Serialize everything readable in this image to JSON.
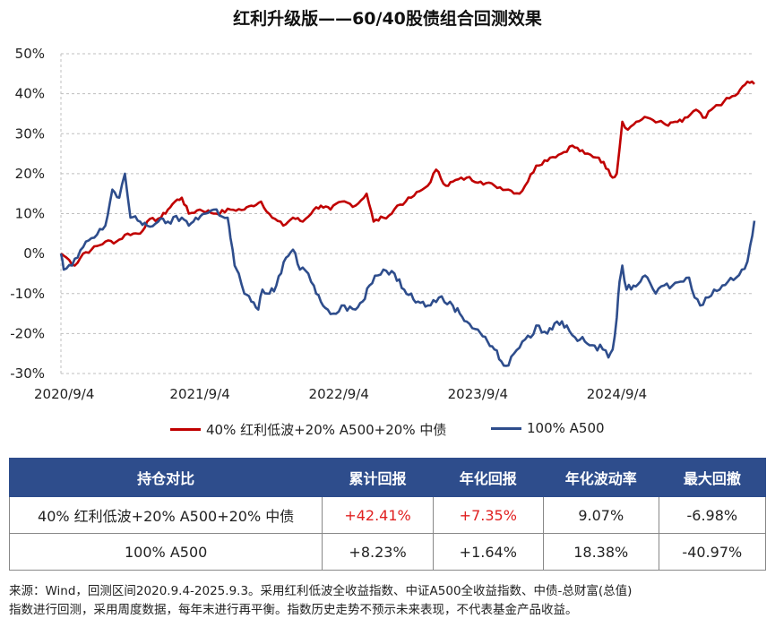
{
  "chart_data": {
    "type": "line",
    "title": "红利升级版——60/40股债组合回测效果",
    "x_ticks": [
      "2020/9/4",
      "2021/9/4",
      "2022/9/4",
      "2023/9/4",
      "2024/9/4"
    ],
    "y_ticks": [
      "50%",
      "40%",
      "30%",
      "20%",
      "10%",
      "0%",
      "-10%",
      "-20%",
      "-30%"
    ],
    "ylim": [
      -30,
      50
    ],
    "x_range": [
      2020.68,
      2025.67
    ],
    "series": [
      {
        "name": "40% 红利低波+20% A500+20% 中债",
        "color": "#c00000",
        "points": [
          [
            2020.68,
            0
          ],
          [
            2020.72,
            -1
          ],
          [
            2020.78,
            -3
          ],
          [
            2020.84,
            0
          ],
          [
            2020.9,
            1
          ],
          [
            2021.0,
            3
          ],
          [
            2021.08,
            3
          ],
          [
            2021.16,
            5
          ],
          [
            2021.2,
            5
          ],
          [
            2021.25,
            5
          ],
          [
            2021.3,
            8
          ],
          [
            2021.4,
            9
          ],
          [
            2021.45,
            11
          ],
          [
            2021.5,
            13
          ],
          [
            2021.55,
            14
          ],
          [
            2021.6,
            10
          ],
          [
            2021.68,
            11
          ],
          [
            2021.8,
            10
          ],
          [
            2021.9,
            11
          ],
          [
            2022.0,
            11
          ],
          [
            2022.05,
            12
          ],
          [
            2022.12,
            13
          ],
          [
            2022.2,
            9
          ],
          [
            2022.28,
            7
          ],
          [
            2022.35,
            9
          ],
          [
            2022.42,
            8
          ],
          [
            2022.5,
            11
          ],
          [
            2022.55,
            12
          ],
          [
            2022.62,
            11
          ],
          [
            2022.7,
            13
          ],
          [
            2022.8,
            12
          ],
          [
            2022.88,
            15
          ],
          [
            2022.93,
            8
          ],
          [
            2023.0,
            9
          ],
          [
            2023.06,
            10
          ],
          [
            2023.1,
            12
          ],
          [
            2023.16,
            13
          ],
          [
            2023.2,
            14
          ],
          [
            2023.28,
            16
          ],
          [
            2023.32,
            17
          ],
          [
            2023.38,
            21
          ],
          [
            2023.45,
            17
          ],
          [
            2023.5,
            18
          ],
          [
            2023.6,
            19
          ],
          [
            2023.7,
            18
          ],
          [
            2023.8,
            17
          ],
          [
            2023.9,
            16
          ],
          [
            2023.98,
            15
          ],
          [
            2024.02,
            17
          ],
          [
            2024.1,
            22
          ],
          [
            2024.2,
            24
          ],
          [
            2024.28,
            25
          ],
          [
            2024.36,
            27
          ],
          [
            2024.45,
            25
          ],
          [
            2024.55,
            24
          ],
          [
            2024.62,
            21
          ],
          [
            2024.65,
            19
          ],
          [
            2024.68,
            20
          ],
          [
            2024.72,
            33
          ],
          [
            2024.76,
            31
          ],
          [
            2024.82,
            33
          ],
          [
            2024.9,
            34
          ],
          [
            2024.98,
            33
          ],
          [
            2025.05,
            32
          ],
          [
            2025.1,
            33
          ],
          [
            2025.15,
            33
          ],
          [
            2025.25,
            36
          ],
          [
            2025.3,
            34
          ],
          [
            2025.32,
            34
          ],
          [
            2025.36,
            36
          ],
          [
            2025.45,
            38
          ],
          [
            2025.55,
            40
          ],
          [
            2025.62,
            43
          ],
          [
            2025.67,
            42.4
          ]
        ]
      },
      {
        "name": "100% A500",
        "color": "#2e4d8c",
        "points": [
          [
            2020.68,
            0
          ],
          [
            2020.7,
            -4
          ],
          [
            2020.76,
            -3
          ],
          [
            2020.8,
            -1
          ],
          [
            2020.86,
            3
          ],
          [
            2020.92,
            4
          ],
          [
            2021.0,
            7
          ],
          [
            2021.05,
            16
          ],
          [
            2021.1,
            14
          ],
          [
            2021.14,
            20
          ],
          [
            2021.18,
            9
          ],
          [
            2021.25,
            8
          ],
          [
            2021.3,
            7
          ],
          [
            2021.38,
            8
          ],
          [
            2021.45,
            8
          ],
          [
            2021.55,
            9
          ],
          [
            2021.6,
            7
          ],
          [
            2021.65,
            9
          ],
          [
            2021.72,
            10
          ],
          [
            2021.78,
            11
          ],
          [
            2021.88,
            9
          ],
          [
            2021.9,
            4
          ],
          [
            2021.93,
            -3
          ],
          [
            2021.96,
            -5
          ],
          [
            2022.0,
            -10
          ],
          [
            2022.05,
            -12
          ],
          [
            2022.1,
            -14
          ],
          [
            2022.13,
            -9
          ],
          [
            2022.18,
            -10
          ],
          [
            2022.23,
            -8
          ],
          [
            2022.3,
            -1
          ],
          [
            2022.35,
            1
          ],
          [
            2022.4,
            -4
          ],
          [
            2022.46,
            -5
          ],
          [
            2022.5,
            -8
          ],
          [
            2022.55,
            -12
          ],
          [
            2022.6,
            -14
          ],
          [
            2022.64,
            -15
          ],
          [
            2022.7,
            -13
          ],
          [
            2022.8,
            -14
          ],
          [
            2022.85,
            -12
          ],
          [
            2022.9,
            -8
          ],
          [
            2023.0,
            -4
          ],
          [
            2023.08,
            -5
          ],
          [
            2023.15,
            -9
          ],
          [
            2023.2,
            -10
          ],
          [
            2023.25,
            -12
          ],
          [
            2023.32,
            -13
          ],
          [
            2023.4,
            -11
          ],
          [
            2023.5,
            -13
          ],
          [
            2023.55,
            -15
          ],
          [
            2023.6,
            -17
          ],
          [
            2023.68,
            -19
          ],
          [
            2023.75,
            -22
          ],
          [
            2023.8,
            -24
          ],
          [
            2023.85,
            -27
          ],
          [
            2023.9,
            -28
          ],
          [
            2023.94,
            -25
          ],
          [
            2024.0,
            -22
          ],
          [
            2024.06,
            -21
          ],
          [
            2024.1,
            -18
          ],
          [
            2024.18,
            -20
          ],
          [
            2024.25,
            -17
          ],
          [
            2024.32,
            -18
          ],
          [
            2024.38,
            -21
          ],
          [
            2024.45,
            -22
          ],
          [
            2024.52,
            -23
          ],
          [
            2024.58,
            -24
          ],
          [
            2024.62,
            -26
          ],
          [
            2024.65,
            -24
          ],
          [
            2024.68,
            -16
          ],
          [
            2024.7,
            -7
          ],
          [
            2024.72,
            -3
          ],
          [
            2024.75,
            -9
          ],
          [
            2024.8,
            -8
          ],
          [
            2024.85,
            -7
          ],
          [
            2024.9,
            -6
          ],
          [
            2024.96,
            -10
          ],
          [
            2025.02,
            -8
          ],
          [
            2025.08,
            -8
          ],
          [
            2025.14,
            -7
          ],
          [
            2025.2,
            -6
          ],
          [
            2025.24,
            -11
          ],
          [
            2025.28,
            -13
          ],
          [
            2025.32,
            -11
          ],
          [
            2025.38,
            -9
          ],
          [
            2025.42,
            -9
          ],
          [
            2025.48,
            -7
          ],
          [
            2025.54,
            -6
          ],
          [
            2025.58,
            -4
          ],
          [
            2025.62,
            -2
          ],
          [
            2025.64,
            2
          ],
          [
            2025.67,
            8.2
          ]
        ]
      }
    ]
  },
  "legend": [
    {
      "label": "40% 红利低波+20% A500+20% 中债",
      "color": "#c00000"
    },
    {
      "label": "100% A500",
      "color": "#2e4d8c"
    }
  ],
  "table": {
    "headers": [
      "持仓对比",
      "累计回报",
      "年化回报",
      "年化波动率",
      "最大回撤"
    ],
    "rows": [
      [
        "40% 红利低波+20% A500+20% 中债",
        "+42.41%",
        "+7.35%",
        "9.07%",
        "-6.98%"
      ],
      [
        "100% A500",
        "+8.23%",
        "+1.64%",
        "18.38%",
        "-40.97%"
      ]
    ],
    "highlight_color": "#e02020"
  },
  "note": {
    "line1": "来源：Wind，回测区间2020.9.4-2025.9.3。采用红利低波全收益指数、中证A500全收益指数、中债-总财富(总值)",
    "line2": "指数进行回测，采用周度数据，每年末进行再平衡。指数历史走势不预示未来表现，不代表基金产品收益。"
  }
}
